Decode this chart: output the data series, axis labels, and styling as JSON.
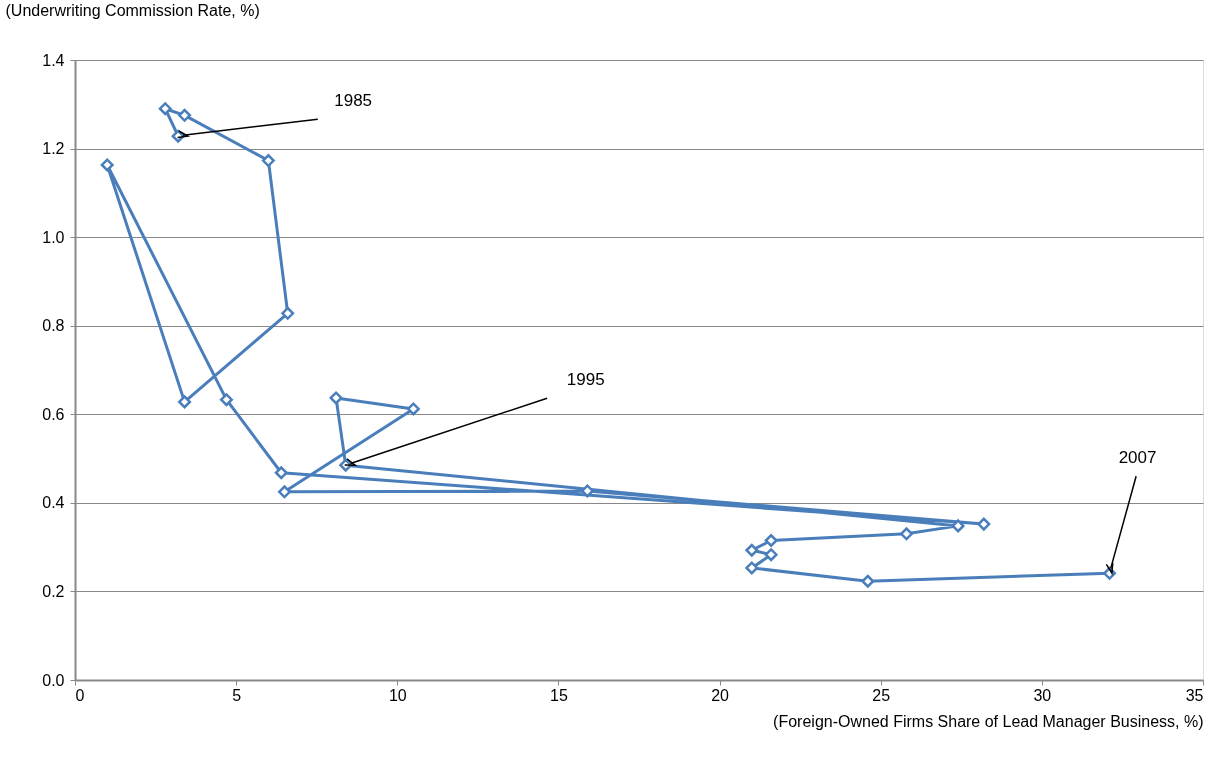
{
  "chart_data": {
    "type": "line",
    "xlabel": "(Foreign-Owned Firms Share of Lead Manager Business, %)",
    "ylabel": "(Underwriting Commission Rate, %)",
    "series": [
      {
        "color": "#4a7ebb",
        "x": [
          3.2,
          2.8,
          3.4,
          6.0,
          6.6,
          3.4,
          1.0,
          4.7,
          6.4,
          28.2,
          15.9,
          6.5,
          10.5,
          8.1,
          8.4,
          27.4,
          25.8,
          21.6,
          21.0,
          21.6,
          21.0,
          24.6,
          32.1
        ],
        "values": [
          1.228,
          1.29,
          1.275,
          1.173,
          0.828,
          0.628,
          1.163,
          0.633,
          0.468,
          0.352,
          0.427,
          0.425,
          0.612,
          0.637,
          0.485,
          0.348,
          0.33,
          0.315,
          0.293,
          0.283,
          0.253,
          0.223,
          0.241
        ]
      }
    ],
    "xlim": [
      0,
      35
    ],
    "xticks": [
      0,
      5,
      10,
      15,
      20,
      25,
      30,
      35
    ],
    "ylim": [
      0,
      1.4
    ],
    "yticks": [
      {
        "value": 0,
        "label": "0.0"
      },
      {
        "value": 0.2,
        "label": "0.2"
      },
      {
        "value": 0.4,
        "label": "0.4"
      },
      {
        "value": 0.6,
        "label": "0.6"
      },
      {
        "value": 0.8,
        "label": "0.8"
      },
      {
        "value": 1.0,
        "label": "1.0"
      },
      {
        "value": 1.2,
        "label": "1.2"
      },
      {
        "value": 1.4,
        "label": "1.4"
      }
    ],
    "annotations": [
      {
        "text": "1985",
        "x": 3.2,
        "y": 1.228
      },
      {
        "text": "1995",
        "x": 8.4,
        "y": 0.485
      },
      {
        "text": "2007",
        "x": 32.1,
        "y": 0.241
      }
    ],
    "grid": "y",
    "marker": "diamond",
    "line_style": "solid"
  }
}
